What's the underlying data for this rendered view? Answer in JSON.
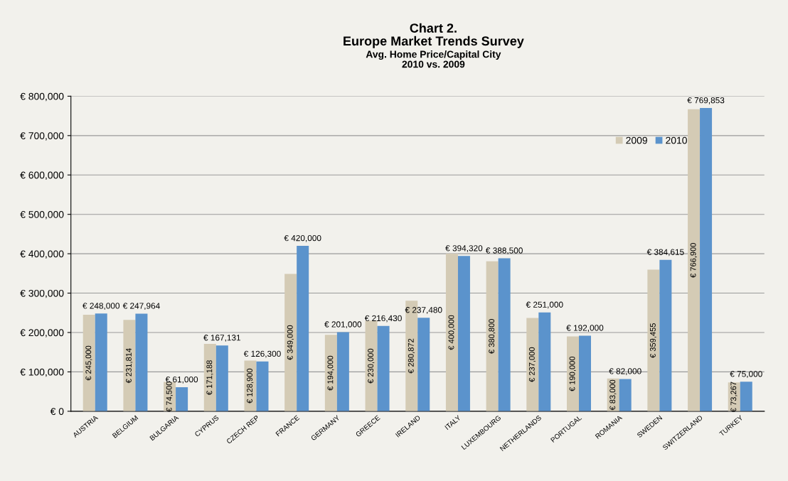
{
  "chart_data": {
    "type": "bar",
    "title": "Chart 2.\nEurope Market Trends Survey",
    "subtitle": "Avg. Home Price/Capital City\n2010 vs. 2009",
    "categories": [
      "AUSTRIA",
      "BELGIUM",
      "BULGARIA",
      "CYPRUS",
      "CZECH REP",
      "FRANCE",
      "GERMANY",
      "GREECE",
      "IRELAND",
      "ITALY",
      "LUXEMBOURG",
      "NETHERLANDS",
      "PORTUGAL",
      "ROMANIA",
      "SWEDEN",
      "SWITZERLAND",
      "TURKEY"
    ],
    "series": [
      {
        "name": "2009",
        "color": "#d4cbb5",
        "values": [
          245000,
          231814,
          74500,
          171188,
          128900,
          349000,
          194000,
          230000,
          280872,
          400000,
          380800,
          237000,
          190000,
          83000,
          359455,
          766900,
          73267
        ],
        "value_labels": [
          "€ 245,000",
          "€ 231,814",
          "€ 74,500",
          "€ 171,188",
          "€ 128,900",
          "€ 349,000",
          "€ 194,000",
          "€ 230,000",
          "€ 280,872",
          "€ 400,000",
          "€ 380,800",
          "€ 237,000",
          "€ 190,000",
          "€ 83,000",
          "€ 359,455",
          "€ 766,900",
          "€ 73,267"
        ]
      },
      {
        "name": "2010",
        "color": "#5b93cc",
        "values": [
          248000,
          247964,
          61000,
          167131,
          126300,
          420000,
          201000,
          216430,
          237480,
          394320,
          388500,
          251000,
          192000,
          82000,
          384615,
          769853,
          75000
        ],
        "value_labels": [
          "€ 248,000",
          "€ 247,964",
          "€ 61,000",
          "€ 167,131",
          "€ 126,300",
          "€ 420,000",
          "€ 201,000",
          "€ 216,430",
          "€ 237,480",
          "€ 394,320",
          "€ 388,500",
          "€ 251,000",
          "€ 192,000",
          "€ 82,000",
          "€ 384,615",
          "€ 769,853",
          "€ 75,000"
        ]
      }
    ],
    "ylim": [
      0,
      800000
    ],
    "yticks": [
      {
        "value": 0,
        "label": "€ 0"
      },
      {
        "value": 100000,
        "label": "€ 100,000"
      },
      {
        "value": 200000,
        "label": "€ 200,000"
      },
      {
        "value": 300000,
        "label": "€ 300,000"
      },
      {
        "value": 400000,
        "label": "€ 400,000"
      },
      {
        "value": 500000,
        "label": "€ 500,000"
      },
      {
        "value": 600000,
        "label": "€ 600,000"
      },
      {
        "value": 700000,
        "label": "€ 700,000"
      },
      {
        "value": 800000,
        "label": "€ 800,000"
      }
    ],
    "grid": "y",
    "legend": "top right"
  }
}
